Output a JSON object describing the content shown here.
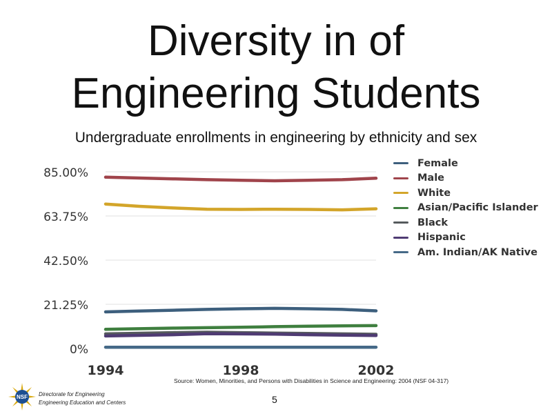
{
  "slide": {
    "title_line1": "Diversity in of",
    "title_line2": "Engineering Students",
    "page_number": "5",
    "footer_line1": "Directorate for Engineering",
    "footer_line2": "Engineering Education and Centers",
    "logo_text": "NSF",
    "source": "Source: Women, Minorities, and Persons with Disabilities in Science and Engineering: 2004 (NSF 04-317)"
  },
  "chart_data": {
    "type": "line",
    "title": "Undergraduate enrollments in engineering by ethnicity and sex",
    "xlabel": "",
    "ylabel": "",
    "x": [
      1994,
      1995,
      1996,
      1997,
      1998,
      1999,
      2000,
      2001,
      2002
    ],
    "x_tick_labels": [
      "1994",
      "1998",
      "2002"
    ],
    "y_tick_labels": [
      "85.00%",
      "63.75%",
      "42.50%",
      "21.25%",
      "0%"
    ],
    "y_ticks": [
      85,
      63.75,
      42.5,
      21.25,
      0
    ],
    "ylim": [
      0,
      85
    ],
    "grid": true,
    "legend_position": "top-right",
    "series": [
      {
        "name": "Female",
        "color": "#3d5f7d",
        "values": [
          17.6,
          18.0,
          18.4,
          18.8,
          19.1,
          19.3,
          19.1,
          18.8,
          18.1
        ]
      },
      {
        "name": "Male",
        "color": "#a0444b",
        "values": [
          82.4,
          82.0,
          81.6,
          81.2,
          80.9,
          80.7,
          80.9,
          81.2,
          81.9
        ]
      },
      {
        "name": "White",
        "color": "#d3a52a",
        "values": [
          69.5,
          68.4,
          67.6,
          67.0,
          66.9,
          67.0,
          66.9,
          66.7,
          67.2
        ]
      },
      {
        "name": "Asian/Pacific Islander",
        "color": "#3f7f3f",
        "values": [
          9.2,
          9.5,
          9.8,
          10.0,
          10.2,
          10.5,
          10.7,
          10.9,
          11.0
        ]
      },
      {
        "name": "Black",
        "color": "#555a5c",
        "values": [
          7.0,
          7.3,
          7.6,
          7.8,
          7.6,
          7.4,
          7.2,
          7.0,
          6.8
        ]
      },
      {
        "name": "Hispanic",
        "color": "#4f3b73",
        "values": [
          6.0,
          6.3,
          6.6,
          7.1,
          7.0,
          6.9,
          6.6,
          6.4,
          6.2
        ]
      },
      {
        "name": "Am. Indian/AK Native",
        "color": "#456987",
        "values": [
          0.6,
          0.6,
          0.6,
          0.6,
          0.6,
          0.6,
          0.6,
          0.6,
          0.6
        ]
      }
    ]
  }
}
